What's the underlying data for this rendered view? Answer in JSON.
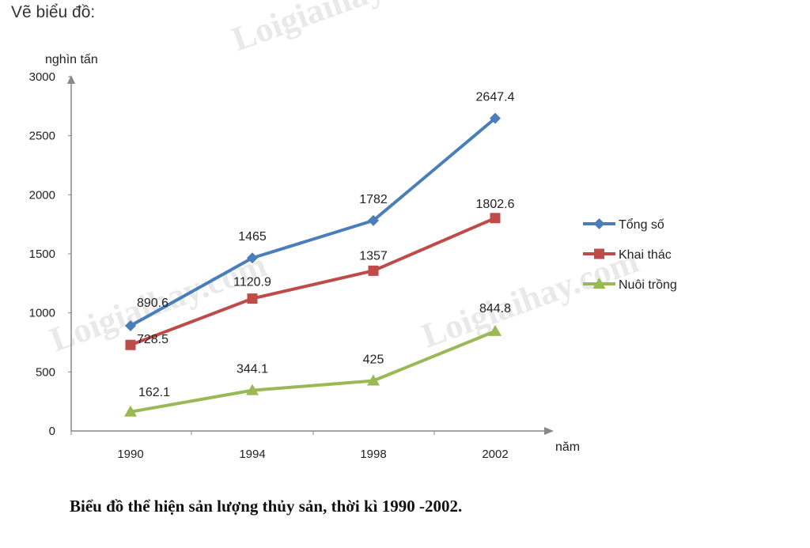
{
  "heading": "Vẽ biểu đồ:",
  "caption": "Biểu đồ thể hiện sản lượng thủy sản, thời kì 1990 -2002.",
  "watermark": "Loigiaihay.com",
  "chart_data": {
    "type": "line",
    "categories": [
      "1990",
      "1994",
      "1998",
      "2002"
    ],
    "series": [
      {
        "name": "Tổng số",
        "values": [
          890.6,
          1465,
          1782,
          2647.4
        ],
        "labels": [
          "890.6",
          "1465",
          "1782",
          "2647.4"
        ],
        "color": "#4a7ebb",
        "marker": "diamond"
      },
      {
        "name": "Khai thác",
        "values": [
          728.5,
          1120.9,
          1357,
          1802.6
        ],
        "labels": [
          "728.5",
          "1120.9",
          "1357",
          "1802.6"
        ],
        "color": "#be4b48",
        "marker": "square"
      },
      {
        "name": "Nuôi trồng",
        "values": [
          162.1,
          344.1,
          425,
          844.8
        ],
        "labels": [
          "162.1",
          "344.1",
          "425",
          "844.8"
        ],
        "color": "#98b954",
        "marker": "triangle"
      }
    ],
    "yticks": [
      "0",
      "500",
      "1000",
      "1500",
      "2000",
      "2500",
      "3000"
    ],
    "ylim": [
      0,
      3000
    ],
    "ylabel": "nghìn tấn",
    "xlabel": "năm",
    "legend_position": "right"
  }
}
